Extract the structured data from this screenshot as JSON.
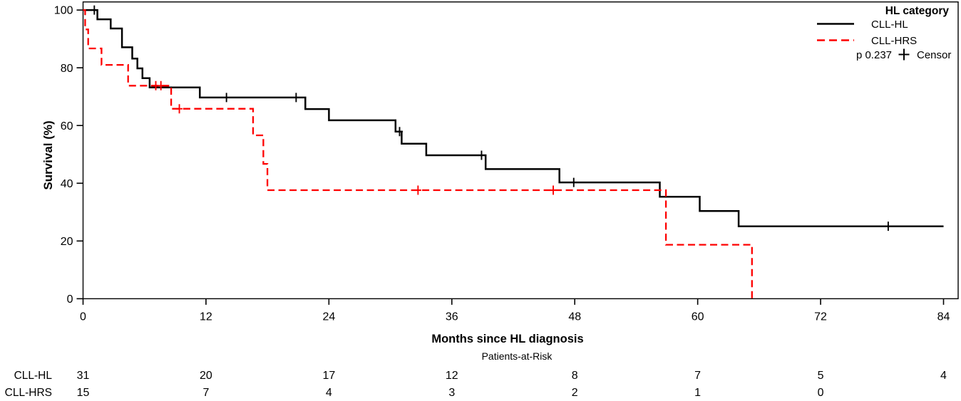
{
  "chart_data": {
    "type": "line",
    "subtype": "kaplan_meier_step_survival",
    "title": "",
    "xlabel": "Months since HL diagnosis",
    "ylabel": "Survival (%)",
    "xlim": [
      0,
      84
    ],
    "ylim": [
      0,
      100
    ],
    "x_ticks": [
      0,
      12,
      24,
      36,
      48,
      60,
      72,
      84
    ],
    "y_ticks": [
      0,
      20,
      40,
      60,
      80,
      100
    ],
    "grid": false,
    "legend": {
      "position": "top-right-inside",
      "title": "HL category",
      "p_value_label": "p 0.237",
      "censor_label": "Censor"
    },
    "series": [
      {
        "name": "CLL-HL",
        "color": "#000000",
        "style": "solid",
        "steps": [
          [
            0,
            100
          ],
          [
            1.4,
            96.8
          ],
          [
            2.7,
            93.6
          ],
          [
            3.8,
            87.1
          ],
          [
            4.8,
            83.2
          ],
          [
            5.3,
            79.8
          ],
          [
            5.8,
            76.4
          ],
          [
            6.5,
            73.2
          ],
          [
            11.4,
            69.7
          ],
          [
            21.7,
            65.7
          ],
          [
            24,
            61.8
          ],
          [
            30.5,
            57.9
          ],
          [
            31.1,
            53.7
          ],
          [
            33.5,
            49.7
          ],
          [
            39.3,
            44.9
          ],
          [
            46.5,
            40.3
          ],
          [
            56.3,
            35.3
          ],
          [
            60.2,
            30.4
          ],
          [
            64,
            25.1
          ]
        ],
        "end_time": 84,
        "censor_marks": [
          [
            1.1,
            100
          ],
          [
            14,
            69.7
          ],
          [
            20.8,
            69.7
          ],
          [
            30.9,
            57.9
          ],
          [
            38.9,
            49.7
          ],
          [
            47.9,
            40.3
          ],
          [
            78.6,
            25.1
          ]
        ]
      },
      {
        "name": "CLL-HRS",
        "color": "#fe0000",
        "style": "dashed",
        "steps": [
          [
            0,
            100
          ],
          [
            0.2,
            93.3
          ],
          [
            0.5,
            86.7
          ],
          [
            1.8,
            81
          ],
          [
            4.4,
            73.8
          ],
          [
            8.6,
            65.8
          ],
          [
            16.6,
            56.6
          ],
          [
            17.6,
            46.7
          ],
          [
            18,
            37.6
          ],
          [
            56.9,
            18.7
          ],
          [
            65.3,
            0
          ]
        ],
        "end_time": 65.3,
        "censor_marks": [
          [
            7.1,
            73.8
          ],
          [
            7.6,
            73.8
          ],
          [
            9.4,
            65.8
          ],
          [
            32.7,
            37.6
          ],
          [
            45.9,
            37.6
          ]
        ]
      }
    ],
    "at_risk_table": {
      "title": "Patients-at-Risk",
      "time_points": [
        0,
        12,
        24,
        36,
        48,
        60,
        72,
        84
      ],
      "rows": [
        {
          "label": "CLL-HL",
          "values": [
            31,
            20,
            17,
            12,
            8,
            7,
            5,
            4
          ]
        },
        {
          "label": "CLL-HRS",
          "values": [
            15,
            7,
            4,
            3,
            2,
            1,
            0
          ]
        }
      ]
    }
  }
}
